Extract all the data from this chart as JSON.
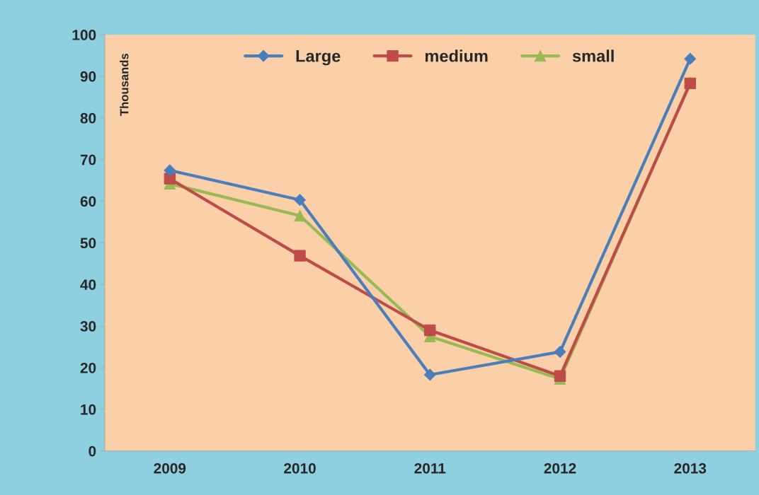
{
  "chart_data": {
    "type": "line",
    "ylabel": "Thousands",
    "categories": [
      "2009",
      "2010",
      "2011",
      "2012",
      "2013"
    ],
    "series": [
      {
        "name": "Large",
        "color": "#4a7ebb",
        "marker": "diamond",
        "values": [
          67.4,
          60.3,
          18.3,
          23.8,
          94.2
        ]
      },
      {
        "name": "medium",
        "color": "#be4b48",
        "marker": "square",
        "values": [
          65.4,
          46.9,
          29.0,
          18.0,
          88.3
        ]
      },
      {
        "name": "small",
        "color": "#98b954",
        "marker": "triangle",
        "values": [
          64.2,
          56.5,
          27.5,
          17.3,
          88.5
        ]
      }
    ],
    "ylim": [
      0,
      100
    ],
    "yticks": [
      0,
      10,
      20,
      30,
      40,
      50,
      60,
      70,
      80,
      90,
      100
    ],
    "grid": false,
    "legend": "top",
    "line_style": "solid"
  }
}
